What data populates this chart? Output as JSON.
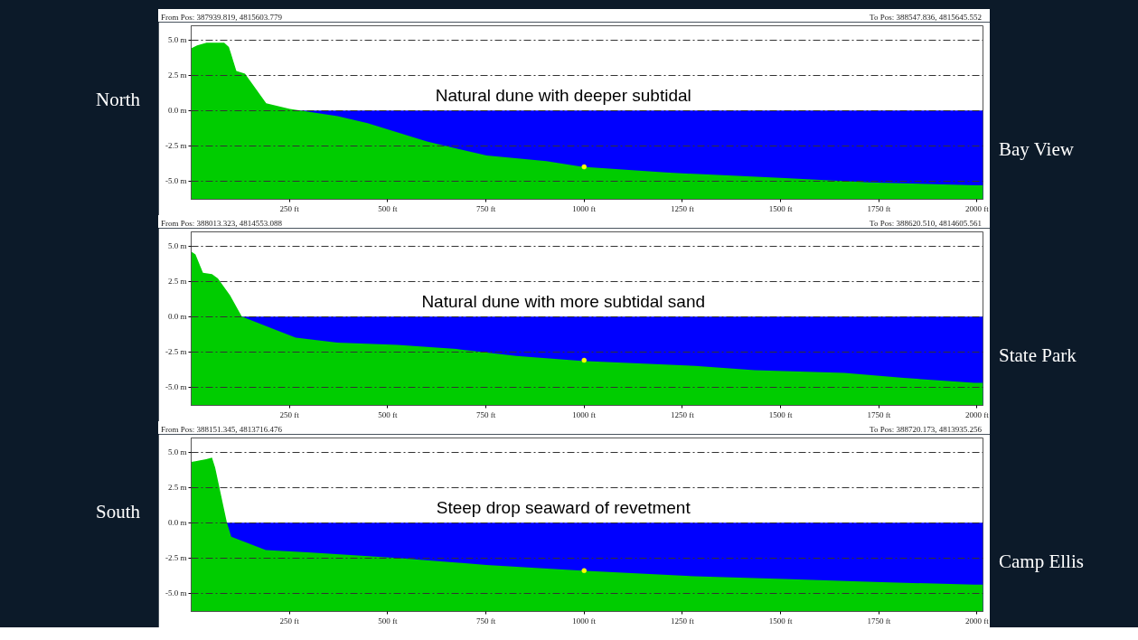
{
  "chart_data": [
    {
      "type": "area",
      "title": "Natural dune with deeper subtidal",
      "ylabel": "North",
      "y2label": "Bay View",
      "annotations": [
        "From Pos: 387939.819, 4815603.779",
        "To Pos: 388547.836, 4815645.552"
      ],
      "series": [
        {
          "color": "#00cc00",
          "x": [
            0,
            15,
            39,
            84,
            96,
            115,
            137,
            191,
            251,
            373,
            449,
            600,
            752,
            904,
            995,
            1208,
            1511,
            1724,
            1997,
            2015
          ],
          "values": [
            4.4,
            4.6,
            4.8,
            4.8,
            4.5,
            2.8,
            2.6,
            0.5,
            0.1,
            -0.4,
            -0.9,
            -2.2,
            -3.2,
            -3.6,
            -4.0,
            -4.4,
            -4.8,
            -5.1,
            -5.3,
            -5.3
          ]
        },
        {
          "type": "scatter",
          "color": "#ffff00",
          "marker": "circle",
          "x": [
            1000
          ],
          "values": [
            -4.0
          ]
        }
      ],
      "bands": [
        {
          "axis": "y",
          "from": -6.3,
          "to": 0,
          "color": "#0000ff"
        }
      ],
      "xlim": [
        0,
        2015
      ],
      "ylim": [
        -6.3,
        6.0
      ],
      "xticks": [
        {
          "value": 250,
          "label": "250 ft"
        },
        {
          "value": 500,
          "label": "500 ft"
        },
        {
          "value": 750,
          "label": "750 ft"
        },
        {
          "value": 1000,
          "label": "1000 ft"
        },
        {
          "value": 1250,
          "label": "1250 ft"
        },
        {
          "value": 1500,
          "label": "1500 ft"
        },
        {
          "value": 1750,
          "label": "1750 ft"
        },
        {
          "value": 2000,
          "label": "2000 ft"
        }
      ],
      "yticks": [
        {
          "value": -5,
          "label": "-5.0 m"
        },
        {
          "value": -2.5,
          "label": "-2.5 m"
        },
        {
          "value": 0,
          "label": "0.0 m"
        },
        {
          "value": 2.5,
          "label": "2.5 m"
        },
        {
          "value": 5,
          "label": "5.0 m"
        }
      ],
      "grid": "y"
    },
    {
      "type": "area",
      "title": "Natural dune with more subtidal sand",
      "y2label": "State Park",
      "annotations": [
        "From Pos: 388013.323, 4814553.088",
        "To Pos: 388620.510, 4814605.561"
      ],
      "series": [
        {
          "color": "#00cc00",
          "x": [
            0,
            11,
            30,
            53,
            68,
            99,
            129,
            220,
            266,
            372,
            524,
            675,
            827,
            994,
            1282,
            1434,
            1662,
            1813,
            1993,
            2015
          ],
          "values": [
            4.6,
            4.4,
            3.1,
            3.0,
            2.7,
            1.5,
            0.0,
            -1.0,
            -1.5,
            -1.85,
            -2.0,
            -2.3,
            -2.8,
            -3.15,
            -3.5,
            -3.8,
            -4.0,
            -4.35,
            -4.7,
            -4.7
          ]
        },
        {
          "type": "scatter",
          "color": "#ffff00",
          "marker": "circle",
          "x": [
            1000
          ],
          "values": [
            -3.1
          ]
        }
      ],
      "bands": [
        {
          "axis": "y",
          "from": -6.3,
          "to": 0,
          "color": "#0000ff"
        }
      ],
      "xlim": [
        0,
        2015
      ],
      "ylim": [
        -6.3,
        6.0
      ],
      "xticks": [
        {
          "value": 250,
          "label": "250 ft"
        },
        {
          "value": 500,
          "label": "500 ft"
        },
        {
          "value": 750,
          "label": "750 ft"
        },
        {
          "value": 1000,
          "label": "1000 ft"
        },
        {
          "value": 1250,
          "label": "1250 ft"
        },
        {
          "value": 1500,
          "label": "1500 ft"
        },
        {
          "value": 1750,
          "label": "1750 ft"
        },
        {
          "value": 2000,
          "label": "2000 ft"
        }
      ],
      "yticks": [
        {
          "value": -5,
          "label": "-5.0 m"
        },
        {
          "value": -2.5,
          "label": "-2.5 m"
        },
        {
          "value": 0,
          "label": "0.0 m"
        },
        {
          "value": 2.5,
          "label": "2.5 m"
        },
        {
          "value": 5,
          "label": "5.0 m"
        }
      ],
      "grid": "y"
    },
    {
      "type": "area",
      "title": "Steep drop seaward of revetment",
      "ylabel": "South",
      "y2label": "Camp Ellis",
      "annotations": [
        "From Pos: 388151.345, 4813716.476",
        "To Pos: 388720.173, 4813935.256"
      ],
      "series": [
        {
          "color": "#00cc00",
          "x": [
            0,
            11,
            38,
            53,
            61,
            91,
            102,
            190,
            296,
            524,
            751,
            994,
            1282,
            1510,
            1738,
            1993,
            2015
          ],
          "values": [
            4.3,
            4.35,
            4.5,
            4.6,
            3.9,
            0.0,
            -1.0,
            -1.95,
            -2.1,
            -2.5,
            -3.0,
            -3.4,
            -3.8,
            -4.0,
            -4.2,
            -4.4,
            -4.4
          ]
        },
        {
          "type": "scatter",
          "color": "#ffff00",
          "marker": "circle",
          "x": [
            1000
          ],
          "values": [
            -3.4
          ]
        }
      ],
      "bands": [
        {
          "axis": "y",
          "from": -6.3,
          "to": 0,
          "color": "#0000ff"
        }
      ],
      "xlim": [
        0,
        2015
      ],
      "ylim": [
        -6.3,
        6.0
      ],
      "xticks": [
        {
          "value": 250,
          "label": "250 ft"
        },
        {
          "value": 500,
          "label": "500 ft"
        },
        {
          "value": 750,
          "label": "750 ft"
        },
        {
          "value": 1000,
          "label": "1000 ft"
        },
        {
          "value": 1250,
          "label": "1250 ft"
        },
        {
          "value": 1500,
          "label": "1500 ft"
        },
        {
          "value": 1750,
          "label": "1750 ft"
        },
        {
          "value": 2000,
          "label": "2000 ft"
        }
      ],
      "yticks": [
        {
          "value": -5,
          "label": "-5.0 m"
        },
        {
          "value": -2.5,
          "label": "-2.5 m"
        },
        {
          "value": 0,
          "label": "0.0 m"
        },
        {
          "value": 2.5,
          "label": "2.5 m"
        },
        {
          "value": 5,
          "label": "5.0 m"
        }
      ],
      "grid": "y"
    }
  ]
}
